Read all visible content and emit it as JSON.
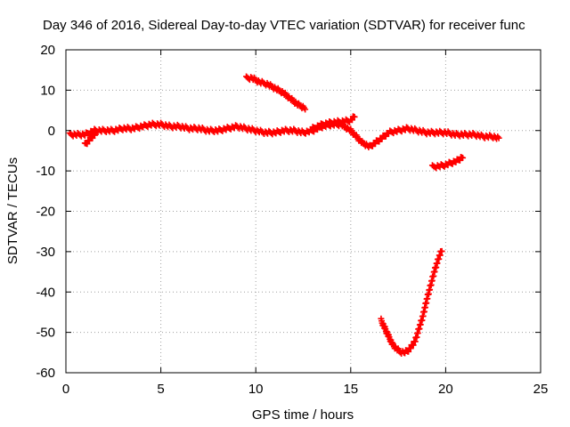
{
  "chart_data": {
    "type": "scatter",
    "title": "Day 346 of 2016, Sidereal Day-to-day VTEC variation (SDTVAR) for receiver func",
    "xlabel": "GPS time / hours",
    "ylabel": "SDTVAR / TECUs",
    "xlim": [
      0,
      25
    ],
    "ylim": [
      -60,
      20
    ],
    "xticks": [
      0,
      5,
      10,
      15,
      20,
      25
    ],
    "yticks": [
      -60,
      -50,
      -40,
      -30,
      -20,
      -10,
      0,
      10,
      20
    ],
    "grid": true,
    "legend": "none",
    "marker": "plus",
    "color": "#ff0000",
    "series": [
      {
        "name": "main-band",
        "x": [
          0.2,
          0.5,
          1.0,
          1.5,
          2.0,
          2.5,
          3.0,
          3.5,
          4.0,
          4.5,
          5.0,
          5.5,
          6.0,
          6.5,
          7.0,
          7.5,
          8.0,
          8.5,
          9.0,
          9.5,
          10.0,
          10.5,
          11.0,
          11.5,
          12.0,
          12.5,
          13.0,
          13.5,
          14.0,
          14.5,
          15.0,
          15.3,
          15.6,
          16.0,
          16.3,
          16.6,
          17.0,
          17.5,
          18.0,
          18.5,
          19.0,
          19.5,
          20.0,
          20.5,
          21.0,
          21.5,
          22.0,
          22.5,
          22.8
        ],
        "y": [
          -1,
          -1,
          -1,
          0,
          0,
          0,
          0.5,
          0.5,
          1,
          1.5,
          1.5,
          1,
          1,
          0.5,
          0.5,
          0,
          0,
          0.5,
          1,
          0.5,
          0,
          -0.5,
          -0.5,
          0,
          0,
          -0.5,
          0,
          1,
          1.5,
          1.5,
          0,
          -1.5,
          -3,
          -4,
          -3,
          -2,
          -0.5,
          0,
          0.5,
          0,
          -0.5,
          -0.5,
          -0.5,
          -1,
          -1,
          -1,
          -1.5,
          -1.5,
          -2
        ]
      },
      {
        "name": "upper-arc",
        "x": [
          9.5,
          9.8,
          10.2,
          10.6,
          11.0,
          11.4,
          11.8,
          12.2,
          12.6
        ],
        "y": [
          13,
          13,
          12,
          11.5,
          10.5,
          9.5,
          8,
          6.5,
          5.5
        ]
      },
      {
        "name": "secondary-arc",
        "x": [
          13.0,
          13.5,
          14.0,
          14.5,
          15.0,
          15.2
        ],
        "y": [
          0.5,
          1.5,
          2,
          2.2,
          2.5,
          3.5
        ]
      },
      {
        "name": "start-tail",
        "x": [
          1.0,
          1.2,
          1.4,
          1.6
        ],
        "y": [
          -3.5,
          -2.5,
          -1.5,
          -0.5
        ]
      },
      {
        "name": "lower-segment",
        "x": [
          19.3,
          19.7,
          20.0,
          20.3,
          20.6,
          20.9
        ],
        "y": [
          -9,
          -8.8,
          -8.5,
          -8,
          -7.5,
          -6.5
        ]
      },
      {
        "name": "deep-arc",
        "x": [
          16.6,
          16.8,
          17.0,
          17.2,
          17.4,
          17.6,
          17.8,
          18.0,
          18.2,
          18.4,
          18.6,
          18.8,
          19.0,
          19.2,
          19.4,
          19.6,
          19.8
        ],
        "y": [
          -47,
          -49,
          -51,
          -53,
          -54,
          -54.8,
          -55,
          -54.6,
          -53.5,
          -52,
          -49,
          -46,
          -42,
          -38.5,
          -35,
          -32,
          -29.5
        ]
      }
    ]
  }
}
